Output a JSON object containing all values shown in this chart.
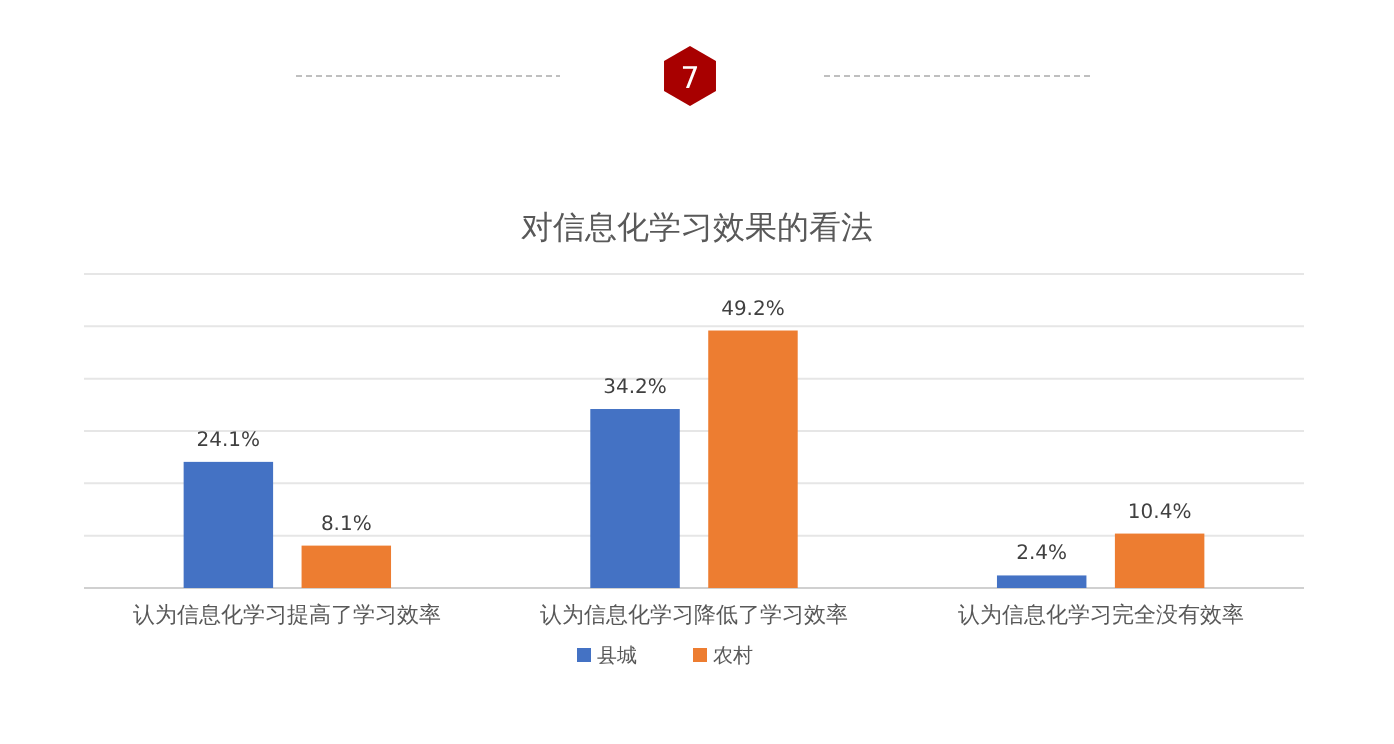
{
  "chart_data": {
    "type": "bar",
    "title": "对信息化学习效果的看法",
    "annotations": [
      "7"
    ],
    "categories": [
      "认为信息化学习提高了学习效率",
      "认为信息化学习降低了学习效率",
      "认为信息化学习完全没有效率"
    ],
    "series": [
      {
        "name": "县城",
        "color": "#4472c4",
        "values": [
          24.1,
          34.2,
          2.4
        ],
        "value_labels": [
          "24.1%",
          "34.2%",
          "2.4%"
        ]
      },
      {
        "name": "农村",
        "color": "#ed7d31",
        "values": [
          8.1,
          49.2,
          10.4
        ],
        "value_labels": [
          "8.1%",
          "49.2%",
          "10.4%"
        ]
      }
    ],
    "ylim": [
      0,
      60
    ],
    "yticks": [
      {
        "value": 0,
        "label": null
      },
      {
        "value": 10,
        "label": null
      },
      {
        "value": 20,
        "label": null
      },
      {
        "value": 30,
        "label": null
      },
      {
        "value": 40,
        "label": null
      },
      {
        "value": 50,
        "label": null
      },
      {
        "value": 60,
        "label": null
      }
    ],
    "tick_labels": "x",
    "grid": "y",
    "legend": "bottom"
  }
}
